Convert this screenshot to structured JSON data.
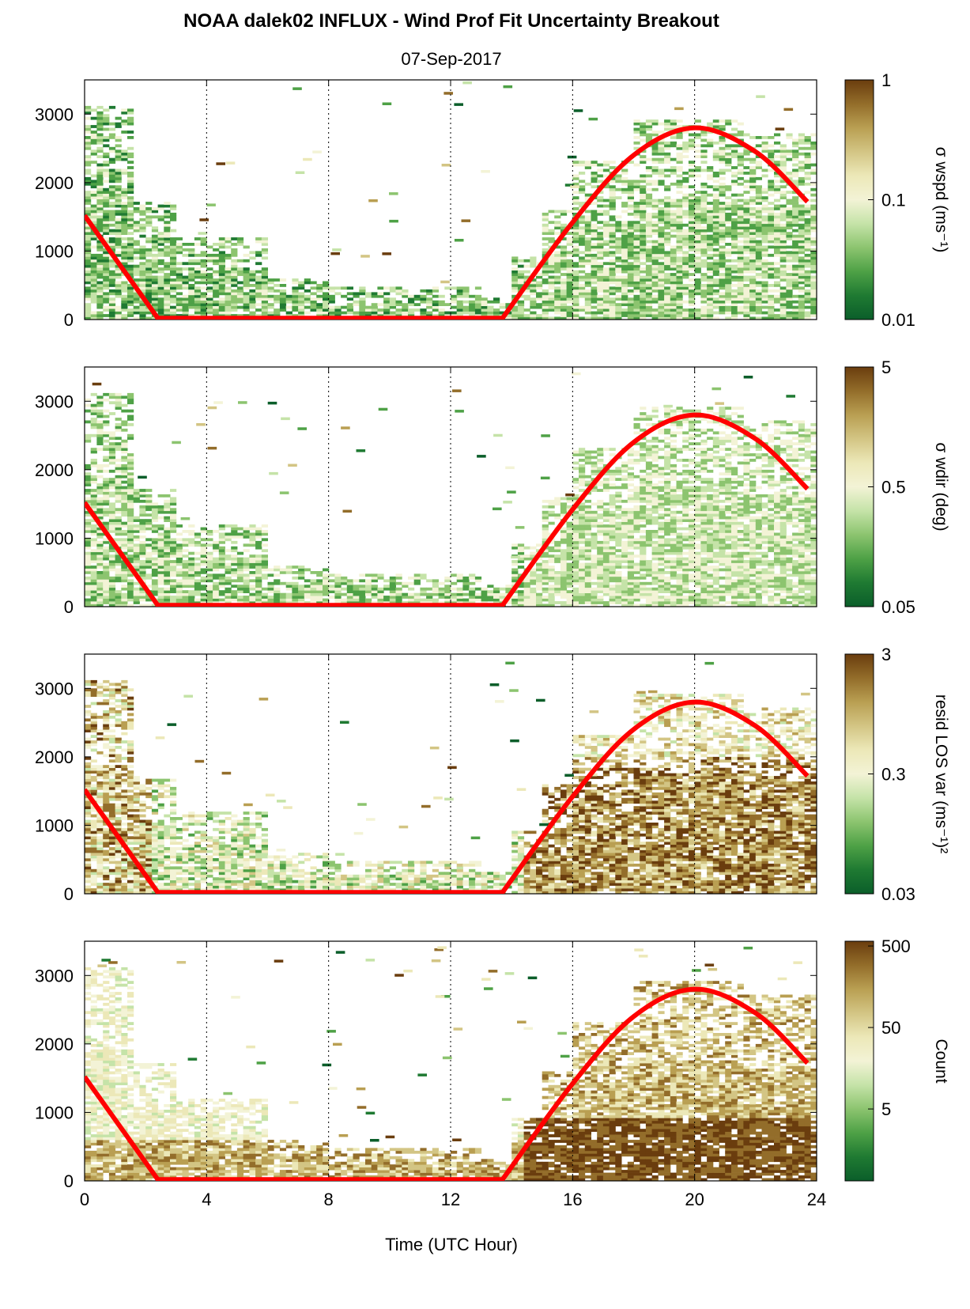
{
  "figure": {
    "title": "NOAA dalek02 INFLUX - Wind Prof Fit Uncertainty Breakout",
    "date": "07-Sep-2017",
    "xlabel": "Time (UTC Hour)"
  },
  "colors": {
    "curve": "#ff0000",
    "colormap": [
      "#0b5e2a",
      "#1f7a32",
      "#4ea146",
      "#8cc46f",
      "#c5e3a8",
      "#f3f3d6",
      "#ece8b8",
      "#d3c584",
      "#b99f52",
      "#936d2a",
      "#6a3d0e"
    ],
    "gridline": "#000000"
  },
  "chart_data": [
    {
      "type": "heatmap",
      "panel": 1,
      "x_range": [
        0,
        24
      ],
      "y_range": [
        0,
        3500
      ],
      "x_ticks": [
        "0",
        "4",
        "8",
        "12",
        "16",
        "20",
        "24"
      ],
      "y_ticks": [
        "0",
        "1000",
        "2000",
        "3000"
      ],
      "vertical_gridlines_x": [
        4,
        8,
        12,
        16,
        20,
        24
      ],
      "colorbar": {
        "label": "σ wspd (ms⁻¹)",
        "scale": "log",
        "range": [
          0.01,
          1
        ],
        "ticks": [
          "1",
          "0.1",
          "0.01"
        ]
      },
      "curve": {
        "name": "",
        "x": [
          0,
          2.4,
          13.7,
          16,
          18,
          20,
          22,
          23.7
        ],
        "y": [
          1520,
          20,
          20,
          1420,
          2400,
          2800,
          2450,
          1720
        ]
      }
    },
    {
      "type": "heatmap",
      "panel": 2,
      "x_range": [
        0,
        24
      ],
      "y_range": [
        0,
        3500
      ],
      "x_ticks": [
        "0",
        "4",
        "8",
        "12",
        "16",
        "20",
        "24"
      ],
      "y_ticks": [
        "0",
        "1000",
        "2000",
        "3000"
      ],
      "vertical_gridlines_x": [
        4,
        8,
        12,
        16,
        20,
        24
      ],
      "colorbar": {
        "label": "σ wdir (deg)",
        "scale": "log",
        "range": [
          0.05,
          5
        ],
        "ticks": [
          "5",
          "0.5",
          "0.05"
        ]
      },
      "curve": {
        "name": "",
        "x": [
          0,
          2.4,
          13.7,
          16,
          18,
          20,
          22,
          23.7
        ],
        "y": [
          1520,
          20,
          20,
          1420,
          2400,
          2800,
          2450,
          1720
        ]
      }
    },
    {
      "type": "heatmap",
      "panel": 3,
      "x_range": [
        0,
        24
      ],
      "y_range": [
        0,
        3500
      ],
      "x_ticks": [
        "0",
        "4",
        "8",
        "12",
        "16",
        "20",
        "24"
      ],
      "y_ticks": [
        "0",
        "1000",
        "2000",
        "3000"
      ],
      "vertical_gridlines_x": [
        4,
        8,
        12,
        16,
        20,
        24
      ],
      "colorbar": {
        "label": "resid LOS var (ms⁻¹)²",
        "scale": "log",
        "range": [
          0.03,
          3
        ],
        "ticks": [
          "3",
          "0.3",
          "0.03"
        ]
      },
      "curve": {
        "name": "",
        "x": [
          0,
          2.4,
          13.7,
          16,
          18,
          20,
          22,
          23.7
        ],
        "y": [
          1520,
          20,
          20,
          1420,
          2400,
          2800,
          2450,
          1720
        ]
      }
    },
    {
      "type": "heatmap",
      "panel": 4,
      "x_range": [
        0,
        24
      ],
      "y_range": [
        0,
        3500
      ],
      "x_ticks": [
        "0",
        "4",
        "8",
        "12",
        "16",
        "20",
        "24"
      ],
      "y_ticks": [
        "0",
        "1000",
        "2000",
        "3000"
      ],
      "vertical_gridlines_x": [
        4,
        8,
        12,
        16,
        20,
        24
      ],
      "colorbar": {
        "label": "Count",
        "scale": "log",
        "range": [
          0.5,
          500
        ],
        "ticks": [
          "500",
          "50",
          "5"
        ]
      },
      "curve": {
        "name": "",
        "x": [
          0,
          2.4,
          13.7,
          16,
          18,
          20,
          22,
          23.7
        ],
        "y": [
          1520,
          20,
          20,
          1420,
          2400,
          2800,
          2450,
          1720
        ]
      }
    }
  ]
}
